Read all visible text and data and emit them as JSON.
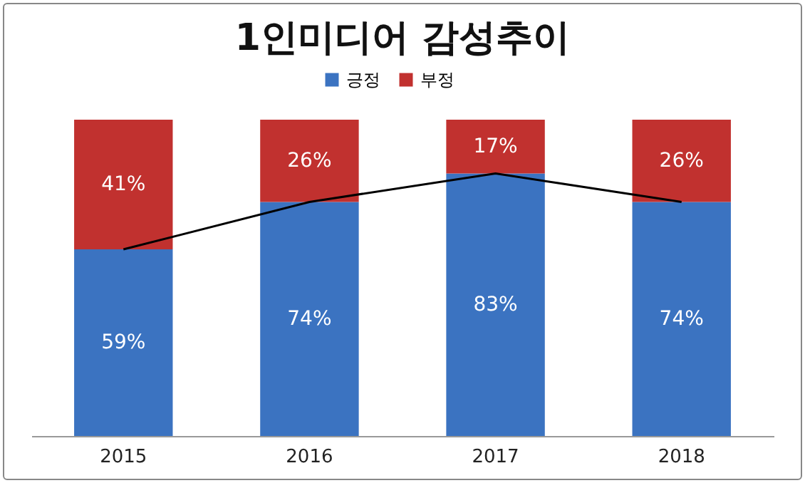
{
  "chart_data": {
    "type": "bar",
    "title": "1인미디어 감성추이",
    "categories": [
      "2015",
      "2016",
      "2017",
      "2018"
    ],
    "stacked": true,
    "ylim": [
      0,
      100
    ],
    "legend": "top",
    "series": [
      {
        "name": "긍정",
        "color": "#3b73c1",
        "values": [
          59,
          74,
          83,
          74
        ],
        "value_labels": [
          "59%",
          "74%",
          "83%",
          "74%"
        ]
      },
      {
        "name": "부정",
        "color": "#c1312f",
        "values": [
          41,
          26,
          17,
          26
        ],
        "value_labels": [
          "41%",
          "26%",
          "17%",
          "26%"
        ]
      },
      {
        "type": "line",
        "color": "#000000",
        "values": [
          59,
          74,
          83,
          74
        ]
      }
    ]
  }
}
